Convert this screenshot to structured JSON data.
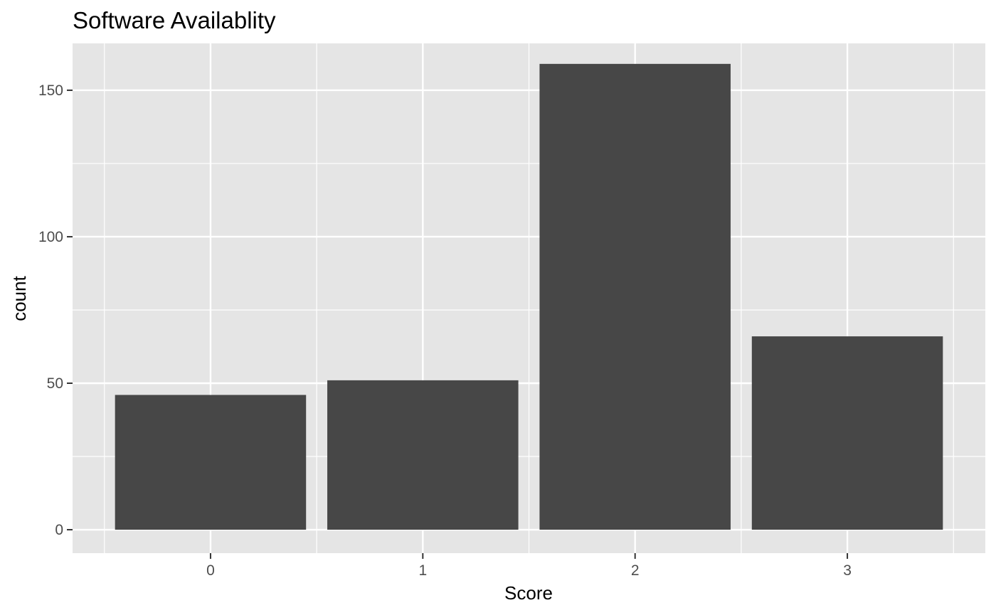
{
  "chart_data": {
    "type": "bar",
    "title": "Software Availablity",
    "xlabel": "Score",
    "ylabel": "count",
    "categories": [
      "0",
      "1",
      "2",
      "3"
    ],
    "values": [
      46,
      51,
      159,
      66
    ],
    "ylim": [
      -8,
      166
    ],
    "yticks": [
      0,
      50,
      100,
      150
    ],
    "grid": true,
    "colors": {
      "panel_background": "#e5e5e5",
      "gridline": "#ffffff",
      "bar": "#474747",
      "tick_text": "#4d4d4d",
      "tick_mark": "#333333"
    }
  }
}
